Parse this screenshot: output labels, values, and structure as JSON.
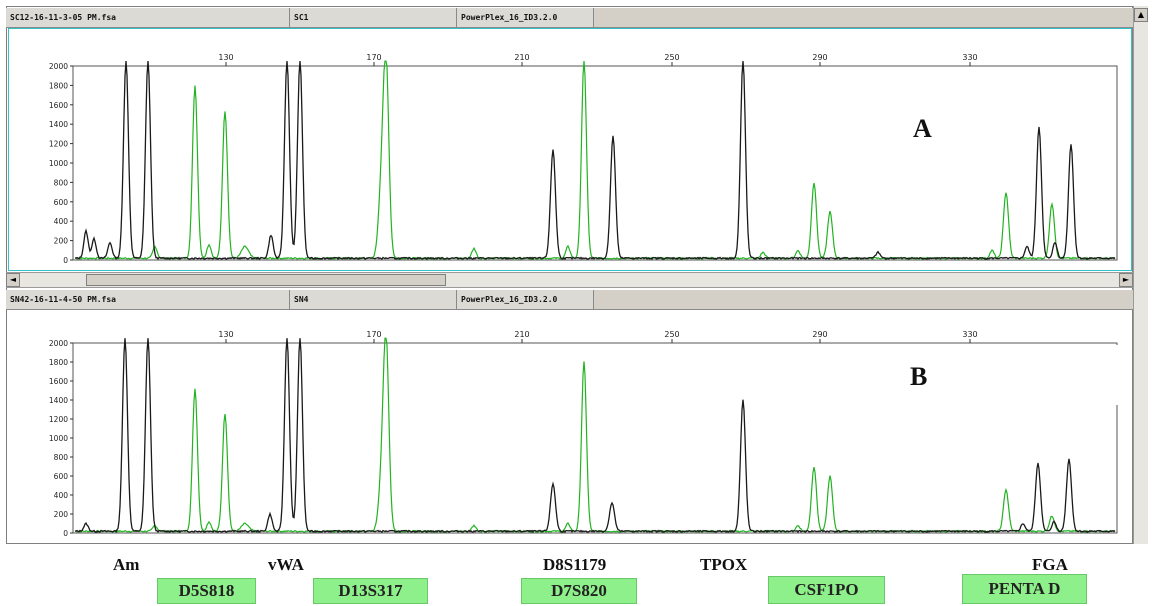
{
  "panels": [
    {
      "file": "SC12-16-11-3-05 PM.fsa",
      "sample": "SC1",
      "kit": "PowerPlex_16_ID3.2.0",
      "letter": "A"
    },
    {
      "file": "SN42-16-11-4-50 PM.fsa",
      "sample": "SN4",
      "kit": "PowerPlex_16_ID3.2.0",
      "letter": "B"
    }
  ],
  "x_ticks": [
    "130",
    "170",
    "210",
    "250",
    "290",
    "330"
  ],
  "y_ticks": [
    "2000",
    "1800",
    "1600",
    "1400",
    "1200",
    "1000",
    "800",
    "600",
    "400",
    "200",
    "0"
  ],
  "loci_black": [
    "Am",
    "vWA",
    "D8S1179",
    "TPOX",
    "FGA"
  ],
  "loci_green": [
    "D5S818",
    "D13S317",
    "D7S820",
    "CSF1PO",
    "PENTA D"
  ],
  "colors": {
    "black_dye": "#1a1a1a",
    "green_dye": "#22b322",
    "locus_box": "#8ef08a",
    "panel_border": "#33c0c8"
  },
  "scrollbar_up_glyph": "▲",
  "scrollbar_left_glyph": "◄",
  "scrollbar_right_glyph": "►"
}
